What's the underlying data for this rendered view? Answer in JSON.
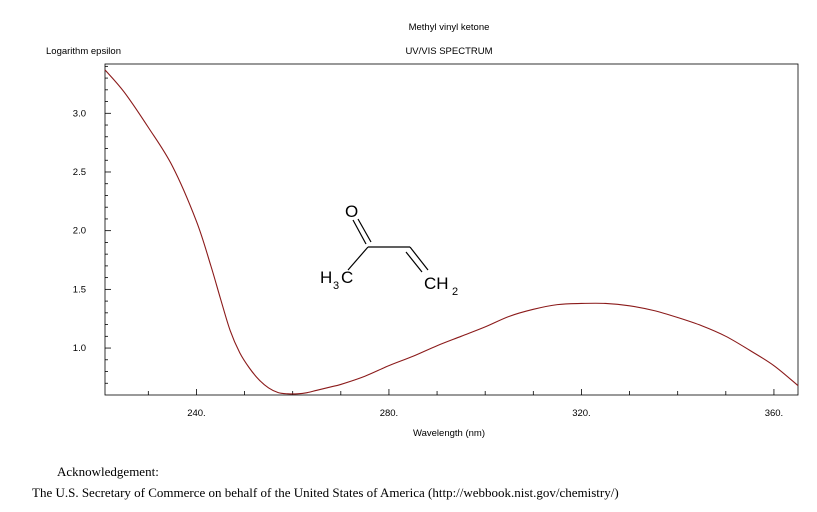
{
  "chart_data": {
    "type": "line",
    "title": "Methyl vinyl ketone",
    "subtitle": "UV/VIS SPECTRUM",
    "xlabel": "Wavelength (nm)",
    "ylabel": "Logarithm epsilon",
    "xlim": [
      221,
      365
    ],
    "ylim": [
      0.6,
      3.42
    ],
    "x_ticks": [
      240,
      280,
      320,
      360
    ],
    "x_tick_labels": [
      "240.",
      "280.",
      "320.",
      "360."
    ],
    "y_ticks": [
      1.0,
      1.5,
      2.0,
      2.5,
      3.0
    ],
    "y_tick_labels": [
      "1.0",
      "1.5",
      "2.0",
      "2.5",
      "3.0"
    ],
    "grid": false,
    "line_color": "#8b1a1a",
    "series": [
      {
        "x": [
          221,
          225,
          230,
          235,
          240,
          243,
          245,
          247,
          249,
          251,
          253,
          255,
          257,
          259,
          261,
          263,
          265,
          268,
          270,
          275,
          280,
          285,
          290,
          295,
          300,
          305,
          310,
          315,
          320,
          325,
          330,
          335,
          340,
          345,
          350,
          355,
          360,
          365
        ],
        "y": [
          3.37,
          3.18,
          2.88,
          2.55,
          2.08,
          1.7,
          1.42,
          1.15,
          0.96,
          0.83,
          0.73,
          0.66,
          0.62,
          0.61,
          0.61,
          0.62,
          0.64,
          0.67,
          0.69,
          0.76,
          0.85,
          0.93,
          1.02,
          1.1,
          1.18,
          1.27,
          1.33,
          1.37,
          1.38,
          1.38,
          1.36,
          1.32,
          1.26,
          1.19,
          1.1,
          0.98,
          0.85,
          0.68
        ]
      }
    ],
    "molecule": {
      "name": "methyl vinyl ketone",
      "oxygen": "O",
      "methyl_main": "H",
      "methyl_sub": "3",
      "methyl_end": "C",
      "methylene_main": "CH",
      "methylene_sub": "2"
    }
  },
  "acknowledgement": {
    "title": "Acknowledgement:",
    "text": "The U.S. Secretary of Commerce on behalf of the United States of America (http://webbook.nist.gov/chemistry/)"
  }
}
